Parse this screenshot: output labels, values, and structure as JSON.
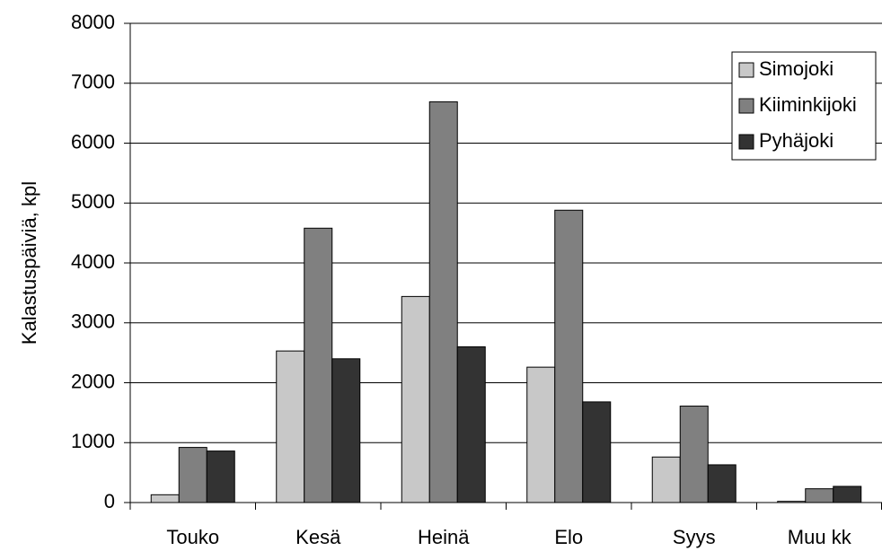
{
  "chart_data": {
    "type": "bar",
    "y_label": "Kalastuspäiviä, kpl",
    "categories": [
      "Touko",
      "Kesä",
      "Heinä",
      "Elo",
      "Syys",
      "Muu kk"
    ],
    "series": [
      {
        "name": "Simojoki",
        "color": "#c8c8c8",
        "values": [
          130,
          2530,
          3440,
          2260,
          760,
          20
        ]
      },
      {
        "name": "Kiiminkijoki",
        "color": "#808080",
        "values": [
          920,
          4580,
          6690,
          4880,
          1610,
          230
        ]
      },
      {
        "name": "Pyhäjoki",
        "color": "#333333",
        "values": [
          860,
          2400,
          2600,
          1680,
          630,
          270
        ]
      }
    ],
    "ylim": [
      0,
      8000
    ],
    "yticks": [
      0,
      1000,
      2000,
      3000,
      4000,
      5000,
      6000,
      7000,
      8000
    ],
    "grid": true,
    "legend": "upper right"
  }
}
